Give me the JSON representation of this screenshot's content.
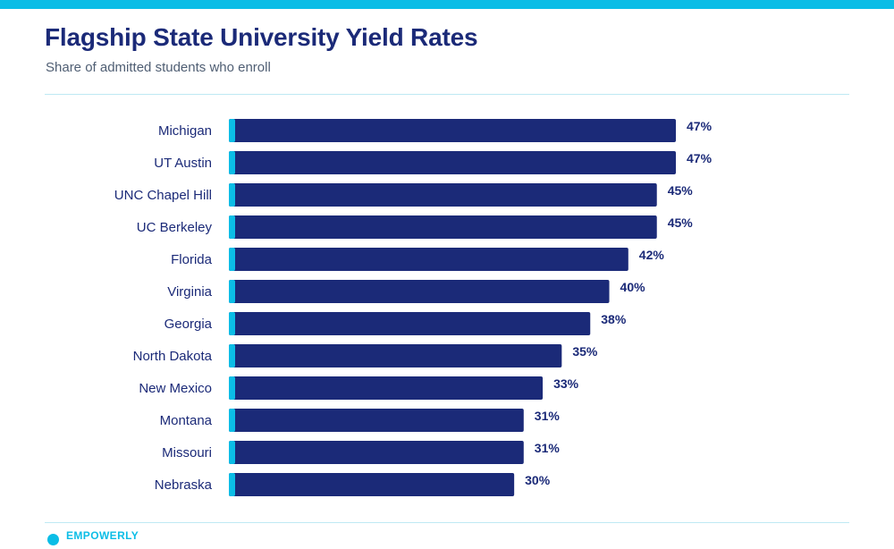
{
  "header": {
    "title": "Flagship State University Yield Rates",
    "subtitle": "Share of admitted students who enroll"
  },
  "footer": {
    "brand": "EMPOWERLY",
    "icon": "circle-dot-icon"
  },
  "colors": {
    "accent": "#0bbde6",
    "bar": "#1b2a78",
    "text": "#1b2a78",
    "subtitle": "#4f5e73",
    "rule": "#bfe9f3"
  },
  "chart_data": {
    "type": "bar",
    "orientation": "horizontal",
    "title": "Flagship State University Yield Rates",
    "subtitle": "Share of admitted students who enroll",
    "categories": [
      "Michigan",
      "UT Austin",
      "UNC Chapel Hill",
      "UC Berkeley",
      "Florida",
      "Virginia",
      "Georgia",
      "North Dakota",
      "New Mexico",
      "Montana",
      "Missouri",
      "Nebraska"
    ],
    "values": [
      47,
      47,
      45,
      45,
      42,
      40,
      38,
      35,
      33,
      31,
      31,
      30
    ],
    "value_labels": [
      "47%",
      "47%",
      "45%",
      "45%",
      "42%",
      "40%",
      "38%",
      "35%",
      "33%",
      "31%",
      "31%",
      "30%"
    ],
    "unit": "%",
    "xlim": [
      0,
      47
    ],
    "grid": false,
    "legend": "none"
  }
}
